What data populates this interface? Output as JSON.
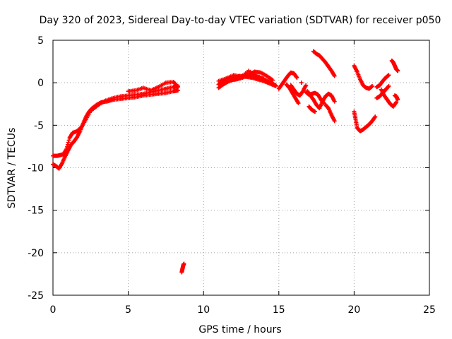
{
  "chart_data": {
    "type": "scatter",
    "title": "Day 320 of 2023, Sidereal Day-to-day VTEC variation (SDTVAR) for receiver p050",
    "xlabel": "GPS time / hours",
    "ylabel": "SDTVAR / TECUs",
    "xlim": [
      0,
      25
    ],
    "ylim": [
      -25,
      5
    ],
    "xticks": [
      "0",
      "5",
      "10",
      "15",
      "20",
      "25"
    ],
    "yticks": [
      "5",
      "0",
      "-5",
      "-10",
      "-15",
      "-20",
      "-25"
    ],
    "grid": true,
    "marker": "plus",
    "color": "#ff0000",
    "series": [
      {
        "name": "arc-1-upper",
        "x": [
          0.0,
          0.3,
          0.5,
          0.7,
          0.9,
          1.1,
          1.3,
          1.6,
          1.9,
          2.2,
          2.5,
          2.8,
          3.1,
          3.5,
          4.0,
          4.5,
          5.0,
          5.5,
          6.0,
          6.5,
          7.0,
          7.5,
          8.0,
          8.3
        ],
        "y": [
          -8.6,
          -8.6,
          -8.5,
          -8.4,
          -7.8,
          -6.5,
          -5.9,
          -5.7,
          -5.2,
          -4.3,
          -3.3,
          -2.9,
          -2.5,
          -2.1,
          -1.8,
          -1.6,
          -1.5,
          -1.4,
          -1.3,
          -1.1,
          -0.9,
          -0.7,
          -0.5,
          -0.4
        ]
      },
      {
        "name": "arc-1-lower",
        "x": [
          0.0,
          0.2,
          0.4,
          0.6,
          0.8,
          1.0,
          1.2,
          1.4,
          1.6,
          1.8,
          2.0,
          2.2,
          2.4,
          2.6,
          2.9,
          3.2,
          3.6,
          4.0,
          4.5,
          5.0,
          5.5,
          6.0,
          6.5,
          7.0,
          7.5,
          8.0,
          8.3
        ],
        "y": [
          -9.6,
          -9.8,
          -10.1,
          -9.5,
          -8.7,
          -8.0,
          -7.3,
          -6.9,
          -6.4,
          -5.7,
          -4.8,
          -4.0,
          -3.4,
          -3.0,
          -2.6,
          -2.3,
          -2.2,
          -2.0,
          -1.9,
          -1.8,
          -1.7,
          -1.5,
          -1.4,
          -1.3,
          -1.2,
          -1.0,
          -0.9
        ]
      },
      {
        "name": "arc-1-mid",
        "x": [
          5.0,
          5.5,
          6.0,
          6.5,
          7.0,
          7.5,
          8.0,
          8.3
        ],
        "y": [
          -1.0,
          -0.9,
          -0.6,
          -0.9,
          -0.5,
          0.0,
          0.1,
          -0.5
        ]
      },
      {
        "name": "outlier",
        "x": [
          8.55,
          8.6,
          8.65,
          8.7
        ],
        "y": [
          -22.3,
          -21.9,
          -21.5,
          -21.3
        ]
      },
      {
        "name": "arc-2-a",
        "x": [
          11.0,
          11.3,
          11.6,
          12.0,
          12.4,
          12.8,
          13.2,
          13.6,
          14.0,
          14.4,
          14.8
        ],
        "y": [
          -0.6,
          -0.2,
          0.1,
          0.4,
          0.6,
          0.8,
          0.9,
          0.7,
          0.4,
          0.1,
          -0.3
        ]
      },
      {
        "name": "arc-2-b",
        "x": [
          11.0,
          11.3,
          11.6,
          12.0,
          12.4,
          12.8,
          13.2,
          13.6,
          14.0,
          14.4,
          14.8
        ],
        "y": [
          -0.2,
          0.2,
          0.5,
          0.6,
          0.8,
          0.7,
          0.6,
          0.4,
          0.2,
          -0.1,
          -0.4
        ]
      },
      {
        "name": "arc-2-c",
        "x": [
          11.8,
          12.2,
          12.6,
          13.0,
          13.4,
          13.8,
          14.2,
          14.6
        ],
        "y": [
          0.3,
          0.4,
          0.6,
          1.0,
          1.3,
          1.2,
          0.8,
          0.3
        ]
      },
      {
        "name": "arc-2-d",
        "x": [
          11.0,
          11.5,
          12.0,
          12.5,
          13.0,
          13.5,
          14.0
        ],
        "y": [
          0.2,
          0.5,
          0.9,
          0.7,
          1.4,
          0.8,
          0.5
        ]
      },
      {
        "name": "arc-3-a",
        "x": [
          15.0,
          15.2,
          15.4,
          15.6,
          15.8,
          16.0,
          16.2
        ],
        "y": [
          -0.7,
          -0.2,
          0.3,
          0.8,
          1.2,
          1.1,
          0.6
        ]
      },
      {
        "name": "arc-3-b",
        "x": [
          15.5,
          15.7,
          15.9,
          16.1,
          16.3
        ],
        "y": [
          -0.2,
          -0.6,
          -1.2,
          -1.8,
          -2.4
        ]
      },
      {
        "name": "arc-3-c",
        "x": [
          15.8,
          16.0,
          16.2,
          16.4,
          16.6,
          16.8
        ],
        "y": [
          -0.3,
          -0.8,
          -1.3,
          -1.5,
          -1.0,
          -0.3
        ]
      },
      {
        "name": "arc-3-d",
        "x": [
          16.8,
          17.0,
          17.2,
          17.4,
          17.6,
          17.8,
          18.0
        ],
        "y": [
          -1.1,
          -1.4,
          -1.3,
          -1.2,
          -1.4,
          -2.0,
          -2.4
        ]
      },
      {
        "name": "arc-3-e",
        "x": [
          17.3,
          17.5,
          17.7,
          17.9,
          18.1,
          18.3,
          18.5,
          18.7
        ],
        "y": [
          3.7,
          3.4,
          3.2,
          2.8,
          2.4,
          1.9,
          1.4,
          0.8
        ]
      },
      {
        "name": "arc-3-f",
        "x": [
          16.9,
          17.1,
          17.3,
          17.5,
          17.7,
          17.9,
          18.1,
          18.3,
          18.5,
          18.7
        ],
        "y": [
          -1.0,
          -1.5,
          -2.0,
          -2.6,
          -3.0,
          -2.2,
          -1.6,
          -1.3,
          -1.5,
          -2.2
        ]
      },
      {
        "name": "arc-3-g",
        "x": [
          17.0,
          17.2,
          17.4
        ],
        "y": [
          -2.8,
          -3.2,
          -3.4
        ]
      },
      {
        "name": "arc-3-h",
        "x": [
          18.1,
          18.3,
          18.5,
          18.7
        ],
        "y": [
          -2.6,
          -3.0,
          -3.8,
          -4.5
        ]
      },
      {
        "name": "arc-3-i",
        "x": [
          16.5
        ],
        "y": [
          0.0
        ]
      },
      {
        "name": "arc-4-a",
        "x": [
          20.0,
          20.2,
          20.4,
          20.6,
          20.8,
          21.0,
          21.2
        ],
        "y": [
          2.0,
          1.3,
          0.4,
          -0.3,
          -0.6,
          -0.7,
          -0.4
        ]
      },
      {
        "name": "arc-4-b",
        "x": [
          20.0,
          20.1,
          20.2,
          20.4,
          20.6,
          20.8,
          21.0,
          21.2,
          21.4
        ],
        "y": [
          -3.4,
          -4.3,
          -5.3,
          -5.7,
          -5.5,
          -5.2,
          -4.9,
          -4.5,
          -4.0
        ]
      },
      {
        "name": "arc-4-c",
        "x": [
          21.5,
          21.7,
          21.9,
          22.1,
          22.3
        ],
        "y": [
          -1.8,
          -1.6,
          -1.2,
          -0.8,
          -0.4
        ]
      },
      {
        "name": "arc-4-d",
        "x": [
          21.5,
          21.7,
          21.9,
          22.1,
          22.3
        ],
        "y": [
          -0.5,
          -0.3,
          0.2,
          0.6,
          0.9
        ]
      },
      {
        "name": "arc-4-e",
        "x": [
          21.8,
          22.0,
          22.2,
          22.4,
          22.6,
          22.8
        ],
        "y": [
          -0.8,
          -1.5,
          -2.0,
          -2.5,
          -2.8,
          -2.3
        ]
      },
      {
        "name": "arc-4-f",
        "x": [
          22.5,
          22.6,
          22.7,
          22.8,
          22.9
        ],
        "y": [
          2.6,
          2.4,
          2.0,
          1.6,
          1.4
        ]
      },
      {
        "name": "arc-4-g",
        "x": [
          22.7,
          22.8,
          22.9
        ],
        "y": [
          -1.5,
          -1.6,
          -2.0
        ]
      }
    ]
  }
}
